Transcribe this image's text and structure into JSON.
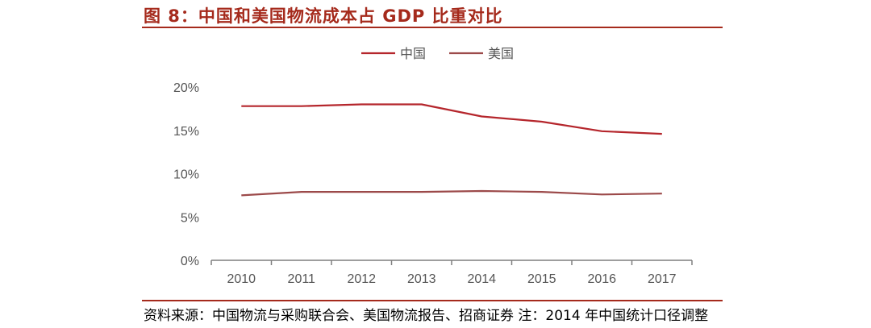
{
  "figure": {
    "title": "图 8：中国和美国物流成本占 GDP 比重对比",
    "source": "资料来源：中国物流与采购联合会、美国物流报告、招商证券 注：2014 年中国统计口径调整"
  },
  "chart_data": {
    "type": "line",
    "title": "中国和美国物流成本占 GDP 比重对比",
    "xlabel": "",
    "ylabel": "",
    "categories": [
      "2010",
      "2011",
      "2012",
      "2013",
      "2014",
      "2015",
      "2016",
      "2017"
    ],
    "y_ticks": [
      "0%",
      "5%",
      "10%",
      "15%",
      "20%"
    ],
    "ylim": [
      0,
      20
    ],
    "grid": false,
    "legend_position": "top-center",
    "series": [
      {
        "name": "中国",
        "color": "#b5262c",
        "values": [
          17.8,
          17.8,
          18.0,
          18.0,
          16.6,
          16.0,
          14.9,
          14.6
        ]
      },
      {
        "name": "美国",
        "color": "#9c4a4a",
        "values": [
          7.5,
          7.9,
          7.9,
          7.9,
          8.0,
          7.9,
          7.6,
          7.7
        ]
      }
    ]
  }
}
